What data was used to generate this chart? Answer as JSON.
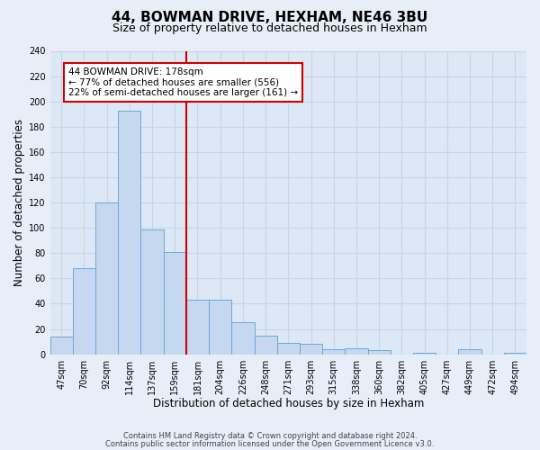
{
  "title": "44, BOWMAN DRIVE, HEXHAM, NE46 3BU",
  "subtitle": "Size of property relative to detached houses in Hexham",
  "xlabel": "Distribution of detached houses by size in Hexham",
  "ylabel": "Number of detached properties",
  "bar_labels": [
    "47sqm",
    "70sqm",
    "92sqm",
    "114sqm",
    "137sqm",
    "159sqm",
    "181sqm",
    "204sqm",
    "226sqm",
    "248sqm",
    "271sqm",
    "293sqm",
    "315sqm",
    "338sqm",
    "360sqm",
    "382sqm",
    "405sqm",
    "427sqm",
    "449sqm",
    "472sqm",
    "494sqm"
  ],
  "bar_heights": [
    14,
    68,
    120,
    193,
    99,
    81,
    43,
    43,
    25,
    15,
    9,
    8,
    4,
    5,
    3,
    0,
    1,
    0,
    4,
    0,
    1
  ],
  "bar_color": "#c5d8f0",
  "bar_edge_color": "#6aaad4",
  "vline_x_index": 6,
  "vline_color": "#cc0000",
  "annotation_text": "44 BOWMAN DRIVE: 178sqm\n← 77% of detached houses are smaller (556)\n22% of semi-detached houses are larger (161) →",
  "annotation_box_edge_color": "#cc0000",
  "annotation_box_face_color": "#ffffff",
  "ylim": [
    0,
    240
  ],
  "yticks": [
    0,
    20,
    40,
    60,
    80,
    100,
    120,
    140,
    160,
    180,
    200,
    220,
    240
  ],
  "grid_color": "#c8d4e8",
  "footer_line1": "Contains HM Land Registry data © Crown copyright and database right 2024.",
  "footer_line2": "Contains public sector information licensed under the Open Government Licence v3.0.",
  "title_fontsize": 11,
  "subtitle_fontsize": 9,
  "axis_label_fontsize": 8.5,
  "tick_fontsize": 7,
  "background_color": "#e8eef8",
  "plot_background_color": "#dce8f5"
}
